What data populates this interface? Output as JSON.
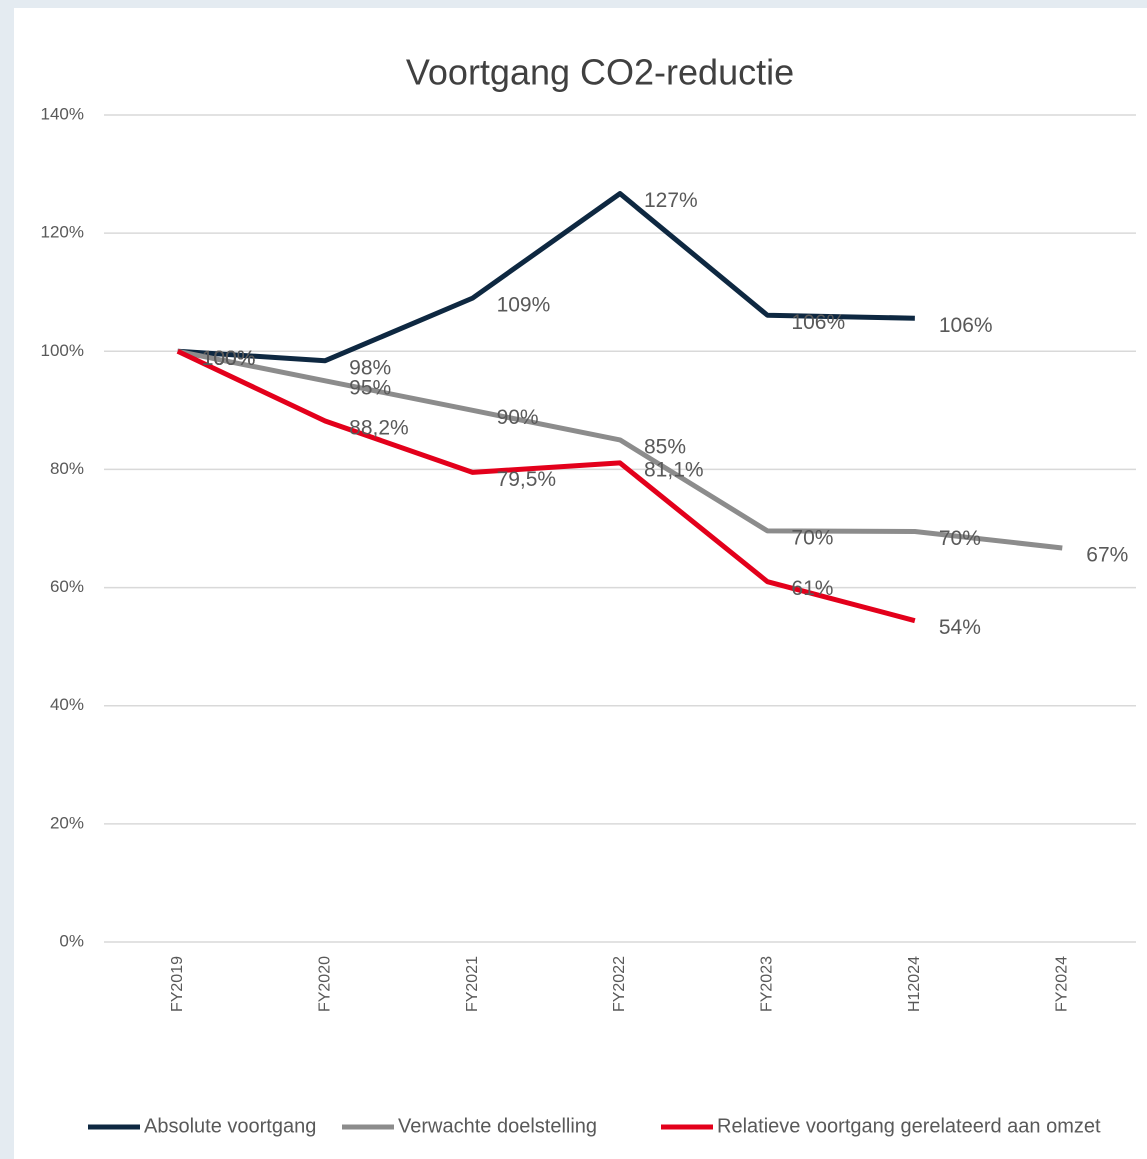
{
  "chart_data": {
    "type": "line",
    "title": "Voortgang CO2-reductie",
    "categories": [
      "FY2019",
      "FY2020",
      "FY2021",
      "FY2022",
      "FY2023",
      "H12024",
      "FY2024"
    ],
    "series": [
      {
        "name": "Absolute voortgang",
        "color": "#0e2841",
        "values": [
          100,
          98.4,
          109,
          126.7,
          106.1,
          105.6,
          null
        ],
        "value_labels": [
          "100%",
          "98%",
          "109%",
          "127%",
          "106%",
          "106%",
          null
        ]
      },
      {
        "name": "Verwachte doelstelling",
        "color": "#8c8c8c",
        "values": [
          100,
          95,
          90,
          85,
          69.6,
          69.5,
          66.7
        ],
        "value_labels": [
          "100%",
          "95%",
          "90%",
          "85%",
          "70%",
          "70%",
          "67%"
        ]
      },
      {
        "name": "Relatieve voortgang gerelateerd aan omzet",
        "color": "#e3001b",
        "values": [
          100,
          88.2,
          79.5,
          81.1,
          61,
          54.4,
          null
        ],
        "value_labels": [
          "100%",
          "88,2%",
          "79,5%",
          "81,1%",
          "61%",
          "54%",
          null
        ]
      }
    ],
    "ylim": [
      0,
      140
    ],
    "yticks": [
      {
        "value": 0,
        "label": "0%"
      },
      {
        "value": 20,
        "label": "20%"
      },
      {
        "value": 40,
        "label": "40%"
      },
      {
        "value": 60,
        "label": "60%"
      },
      {
        "value": 80,
        "label": "80%"
      },
      {
        "value": 100,
        "label": "100%"
      },
      {
        "value": 120,
        "label": "120%"
      },
      {
        "value": 140,
        "label": "140%"
      }
    ],
    "grid": true,
    "legend": "bottom"
  }
}
